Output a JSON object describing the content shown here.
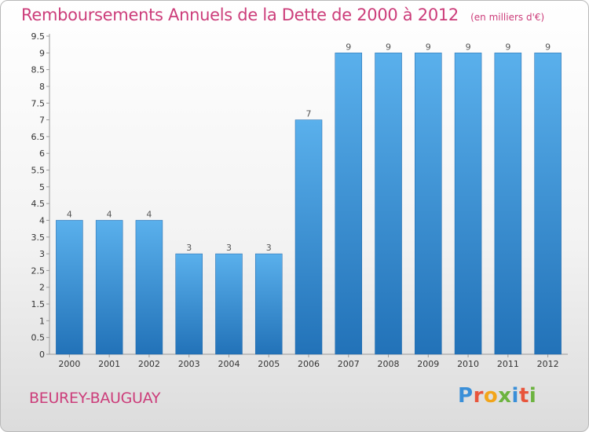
{
  "chart_data": {
    "type": "bar",
    "title": "Remboursements Annuels de la Dette de 2000 à 2012",
    "unit_label": "(en milliers d'€)",
    "categories": [
      "2000",
      "2001",
      "2002",
      "2003",
      "2004",
      "2005",
      "2006",
      "2007",
      "2008",
      "2009",
      "2010",
      "2011",
      "2012"
    ],
    "values": [
      4,
      4,
      4,
      3,
      3,
      3,
      7,
      9,
      9,
      9,
      9,
      9,
      9
    ],
    "ylim": [
      0,
      9.5
    ],
    "yticks": [
      "0",
      "0.5",
      "1",
      "1.5",
      "2",
      "2.5",
      "3",
      "3.5",
      "4",
      "4.5",
      "5",
      "5.5",
      "6",
      "6.5",
      "7",
      "7.5",
      "8",
      "8.5",
      "9",
      "9.5"
    ],
    "xlabel": "",
    "ylabel": "",
    "grid": false,
    "bar_color": "#3d8fd6"
  },
  "footer": {
    "location": "BEUREY-BAUGUAY",
    "brand": [
      "P",
      "r",
      "o",
      "x",
      "i",
      "t",
      "i"
    ],
    "brand_colors": [
      "#3a8fd8",
      "#e8553c",
      "#f2a51a",
      "#6cb33f",
      "#3a8fd8",
      "#e8553c",
      "#6cb33f"
    ]
  }
}
